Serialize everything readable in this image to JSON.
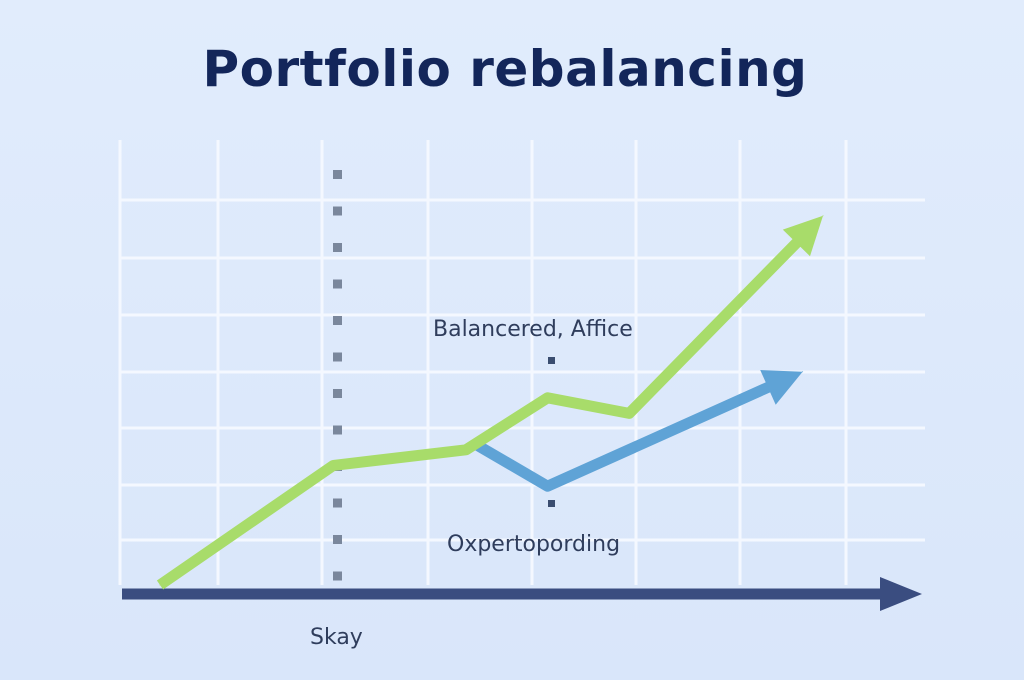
{
  "chart_data": {
    "type": "line",
    "title": "Portfolio rebalancing",
    "xlabel": "",
    "ylabel": "",
    "grid": true,
    "colors": {
      "background": "#dde9fb",
      "grid": "#f4f8ff",
      "axis": "#3a4d80",
      "title": "#13265a",
      "green_series": "#a8dc6a",
      "blue_series": "#5fa3d6",
      "marker": "#7a879c"
    },
    "annotations": [
      {
        "text": "Balancered, Affice"
      },
      {
        "text": "Oxpertopording"
      },
      {
        "text": "Skay"
      }
    ],
    "series": [
      {
        "values": [
          0.0,
          2.3,
          2.6,
          3.6,
          3.3,
          7.1
        ],
        "x": [
          0.0,
          1.7,
          3.0,
          3.8,
          4.6,
          6.5
        ]
      },
      {
        "values": [
          2.7,
          1.9,
          4.1
        ],
        "x": [
          3.1,
          3.8,
          6.3
        ]
      }
    ]
  }
}
